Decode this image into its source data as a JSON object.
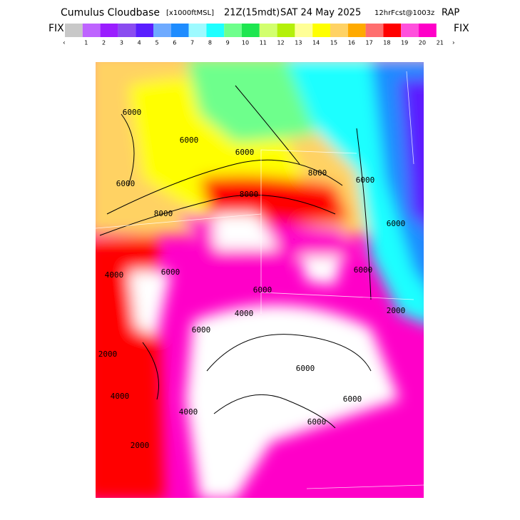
{
  "header": {
    "title": "Cumulus Cloudbase",
    "units": "[x1000ftMSL]",
    "time": "21Z(15mdt)",
    "date": "SAT 24 May 2025",
    "forecast": "12hrFcst@1003z",
    "model": "RAP"
  },
  "legend": {
    "left_button": "FIX",
    "right_button": "FIX",
    "prev": "‹",
    "next": "›",
    "colors": [
      "#c8c8c8",
      "#be64ff",
      "#9a1eff",
      "#8a4cf0",
      "#5a1eff",
      "#6eaaff",
      "#1e8cff",
      "#9efaff",
      "#1effff",
      "#6eff8c",
      "#1ee650",
      "#d2ff6e",
      "#b4f00a",
      "#ffff96",
      "#ffff00",
      "#ffd264",
      "#ffaa00",
      "#ff6e6e",
      "#ff0000",
      "#ff50dc",
      "#ff00c8"
    ],
    "labels": [
      1,
      2,
      3,
      4,
      5,
      6,
      7,
      8,
      9,
      10,
      11,
      12,
      13,
      14,
      15,
      16,
      17,
      18,
      19,
      20,
      21
    ]
  },
  "map": {
    "contour_labels": [
      "6000",
      "6000",
      "6000",
      "8000",
      "6000",
      "8000",
      "8000",
      "4000",
      "6000",
      "6000",
      "6000",
      "6000",
      "6000",
      "2000",
      "4000",
      "6000",
      "2000",
      "6000",
      "4000",
      "6000",
      "4000",
      "6000",
      "2000"
    ]
  }
}
